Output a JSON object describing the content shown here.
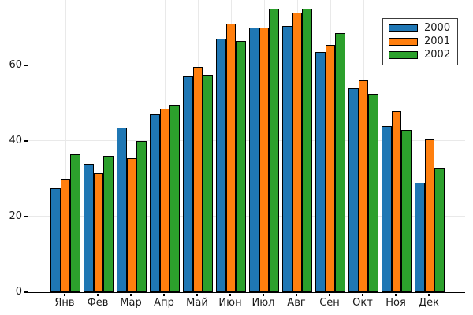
{
  "chart_data": {
    "type": "bar",
    "title": "",
    "xlabel": "",
    "ylabel": "",
    "categories": [
      "Янв",
      "Фев",
      "Мар",
      "Апр",
      "Май",
      "Июн",
      "Июл",
      "Авг",
      "Сен",
      "Окт",
      "Ноя",
      "Дек"
    ],
    "series": [
      {
        "name": "2000",
        "color": "#1f77b4",
        "values": [
          27.5,
          34,
          43.5,
          47,
          57,
          67,
          70,
          70.5,
          63.5,
          54,
          44,
          29
        ]
      },
      {
        "name": "2001",
        "color": "#ff7f0e",
        "values": [
          30,
          31.5,
          35.5,
          48.5,
          59.5,
          71,
          70,
          74,
          65.5,
          56,
          48,
          40.5
        ]
      },
      {
        "name": "2002",
        "color": "#2ca02c",
        "values": [
          36.5,
          36,
          40,
          49.5,
          57.5,
          66.5,
          75,
          75,
          68.5,
          52.5,
          43,
          33
        ]
      }
    ],
    "y_ticks": [
      0,
      20,
      40,
      60
    ],
    "ylim": [
      0,
      77.3
    ],
    "grid": true,
    "legend_position": "top-right",
    "bar_edge_color": "#000000",
    "gridline_color": "#e9e9e9",
    "axis_color": "#000000",
    "background_color": "#ffffff"
  }
}
